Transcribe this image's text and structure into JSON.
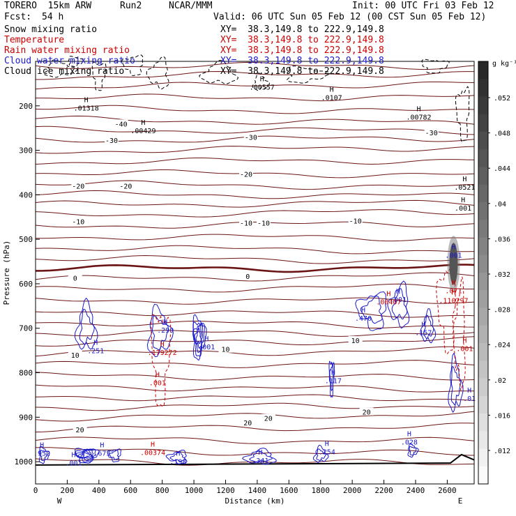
{
  "header": {
    "model": "TORERO  15km ARW",
    "run": "Run2",
    "center": "NCAR/MMM",
    "init": "Init: 00 UTC Fri 03 Feb 12",
    "fcst_label": "Fcst:",
    "fcst_value": "54 h",
    "valid": "Valid: 06 UTC Sun 05 Feb 12 (00 CST Sun 05 Feb 12)"
  },
  "fields": [
    {
      "name": "Snow mixing ratio",
      "xs": "XY=  38.3,149.8 to 222.9,149.8",
      "name_color": "#000000",
      "xs_color": "#000000"
    },
    {
      "name": "Temperature",
      "xs": "XY=  38.3,149.8 to 222.9,149.8",
      "name_color": "#cc0000",
      "xs_color": "#cc0000"
    },
    {
      "name": "Rain water mixing ratio",
      "xs": "XY=  38.3,149.8 to 222.9,149.8",
      "name_color": "#cc0000",
      "xs_color": "#cc0000"
    },
    {
      "name": "Cloud water mixing ratio",
      "xs": "XY=  38.3,149.8 to 222.9,149.8",
      "name_color": "#1a1acc",
      "xs_color": "#1a1acc"
    },
    {
      "name": "Cloud ice mixing ratio",
      "xs": "XY=  38.3,149.8 to 222.9,149.8",
      "name_color": "#000000",
      "xs_color": "#000000"
    }
  ],
  "chart_data": {
    "type": "cross-section contour",
    "xlabel": "Distance (km)",
    "ylabel": "Pressure (hPa)",
    "x_ticks": [
      0,
      200,
      400,
      600,
      800,
      1000,
      1200,
      1400,
      1600,
      1800,
      2000,
      2200,
      2400,
      2600
    ],
    "y_ticks": [
      200,
      300,
      400,
      500,
      600,
      700,
      800,
      900,
      1000
    ],
    "xlim": [
      0,
      2770
    ],
    "ylim": [
      1050,
      100
    ],
    "west_label": "W",
    "east_label": "E",
    "colorbar_units": "g kg⁻¹",
    "colorbar_ticks": [
      ".052",
      ".048",
      ".044",
      ".04",
      ".036",
      ".032",
      ".028",
      ".024",
      ".02",
      ".016",
      ".012"
    ],
    "temperature_isotherm_labels": [
      {
        "text": "-40",
        "x": 540,
        "p": 240
      },
      {
        "text": "-30",
        "x": 480,
        "p": 277
      },
      {
        "text": "-30",
        "x": 1360,
        "p": 270
      },
      {
        "text": "-30",
        "x": 2500,
        "p": 260
      },
      {
        "text": "-20",
        "x": 270,
        "p": 380
      },
      {
        "text": "-20",
        "x": 570,
        "p": 380
      },
      {
        "text": "-20",
        "x": 1330,
        "p": 353
      },
      {
        "text": "-10",
        "x": 270,
        "p": 460
      },
      {
        "text": "-10",
        "x": 1330,
        "p": 463
      },
      {
        "text": "-10",
        "x": 1440,
        "p": 463
      },
      {
        "text": "-10",
        "x": 2020,
        "p": 458
      },
      {
        "text": "0",
        "x": 250,
        "p": 587
      },
      {
        "text": "0",
        "x": 1340,
        "p": 583
      },
      {
        "text": "10",
        "x": 250,
        "p": 760
      },
      {
        "text": "10",
        "x": 1200,
        "p": 747
      },
      {
        "text": "10",
        "x": 2020,
        "p": 727
      },
      {
        "text": "20",
        "x": 280,
        "p": 928
      },
      {
        "text": "20",
        "x": 1340,
        "p": 912
      },
      {
        "text": "20",
        "x": 1470,
        "p": 902
      },
      {
        "text": "20",
        "x": 2090,
        "p": 888
      }
    ],
    "maxima": [
      {
        "text": ".01318",
        "x": 320,
        "p": 207,
        "kind": "snow"
      },
      {
        "text": ".00429",
        "x": 680,
        "p": 258,
        "kind": "snow"
      },
      {
        "text": ".00557",
        "x": 1430,
        "p": 160,
        "kind": "snow"
      },
      {
        "text": ".0107",
        "x": 1870,
        "p": 184,
        "kind": "snow"
      },
      {
        "text": ".00782",
        "x": 2420,
        "p": 228,
        "kind": "snow"
      },
      {
        "text": ".0521",
        "x": 2710,
        "p": 385,
        "kind": "snow"
      },
      {
        "text": ".001",
        "x": 2700,
        "p": 432,
        "kind": "snow"
      },
      {
        "text": ".251",
        "x": 380,
        "p": 753,
        "kind": "cloud"
      },
      {
        "text": ".299",
        "x": 820,
        "p": 707,
        "kind": "cloud"
      },
      {
        "text": ".001",
        "x": 1080,
        "p": 744,
        "kind": "cloud"
      },
      {
        "text": ".117",
        "x": 1880,
        "p": 820,
        "kind": "cloud"
      },
      {
        "text": ".470",
        "x": 2070,
        "p": 680,
        "kind": "cloud"
      },
      {
        "text": ".001",
        "x": 2290,
        "p": 638,
        "kind": "cloud"
      },
      {
        "text": ".157",
        "x": 2450,
        "p": 712,
        "kind": "cloud"
      },
      {
        "text": ".01",
        "x": 2740,
        "p": 860,
        "kind": "cloud"
      },
      {
        "text": ".952",
        "x": 40,
        "p": 983,
        "kind": "cloud"
      },
      {
        "text": ".673",
        "x": 420,
        "p": 983,
        "kind": "cloud"
      },
      {
        "text": ".001",
        "x": 240,
        "p": 1005,
        "kind": "cloud"
      },
      {
        "text": ".198",
        "x": 900,
        "p": 1002,
        "kind": "cloud"
      },
      {
        "text": ".341",
        "x": 1420,
        "p": 1000,
        "kind": "cloud"
      },
      {
        "text": ".254",
        "x": 1840,
        "p": 980,
        "kind": "cloud"
      },
      {
        "text": ".028",
        "x": 2360,
        "p": 958,
        "kind": "cloud"
      },
      {
        "text": ".179272",
        "x": 800,
        "p": 757,
        "kind": "rain"
      },
      {
        "text": ".001",
        "x": 770,
        "p": 825,
        "kind": "rain"
      },
      {
        "text": ".00374",
        "x": 740,
        "p": 982,
        "kind": "rain"
      },
      {
        "text": ".00407",
        "x": 2230,
        "p": 643,
        "kind": "rain"
      },
      {
        "text": ".110297",
        "x": 2640,
        "p": 640,
        "kind": "rain"
      },
      {
        "text": ".001",
        "x": 2710,
        "p": 748,
        "kind": "rain"
      },
      {
        "text": ".001",
        "x": 2640,
        "p": 538,
        "kind": "cloud"
      },
      {
        "text": ".071",
        "x": 2640,
        "p": 618,
        "kind": "rain"
      }
    ]
  }
}
